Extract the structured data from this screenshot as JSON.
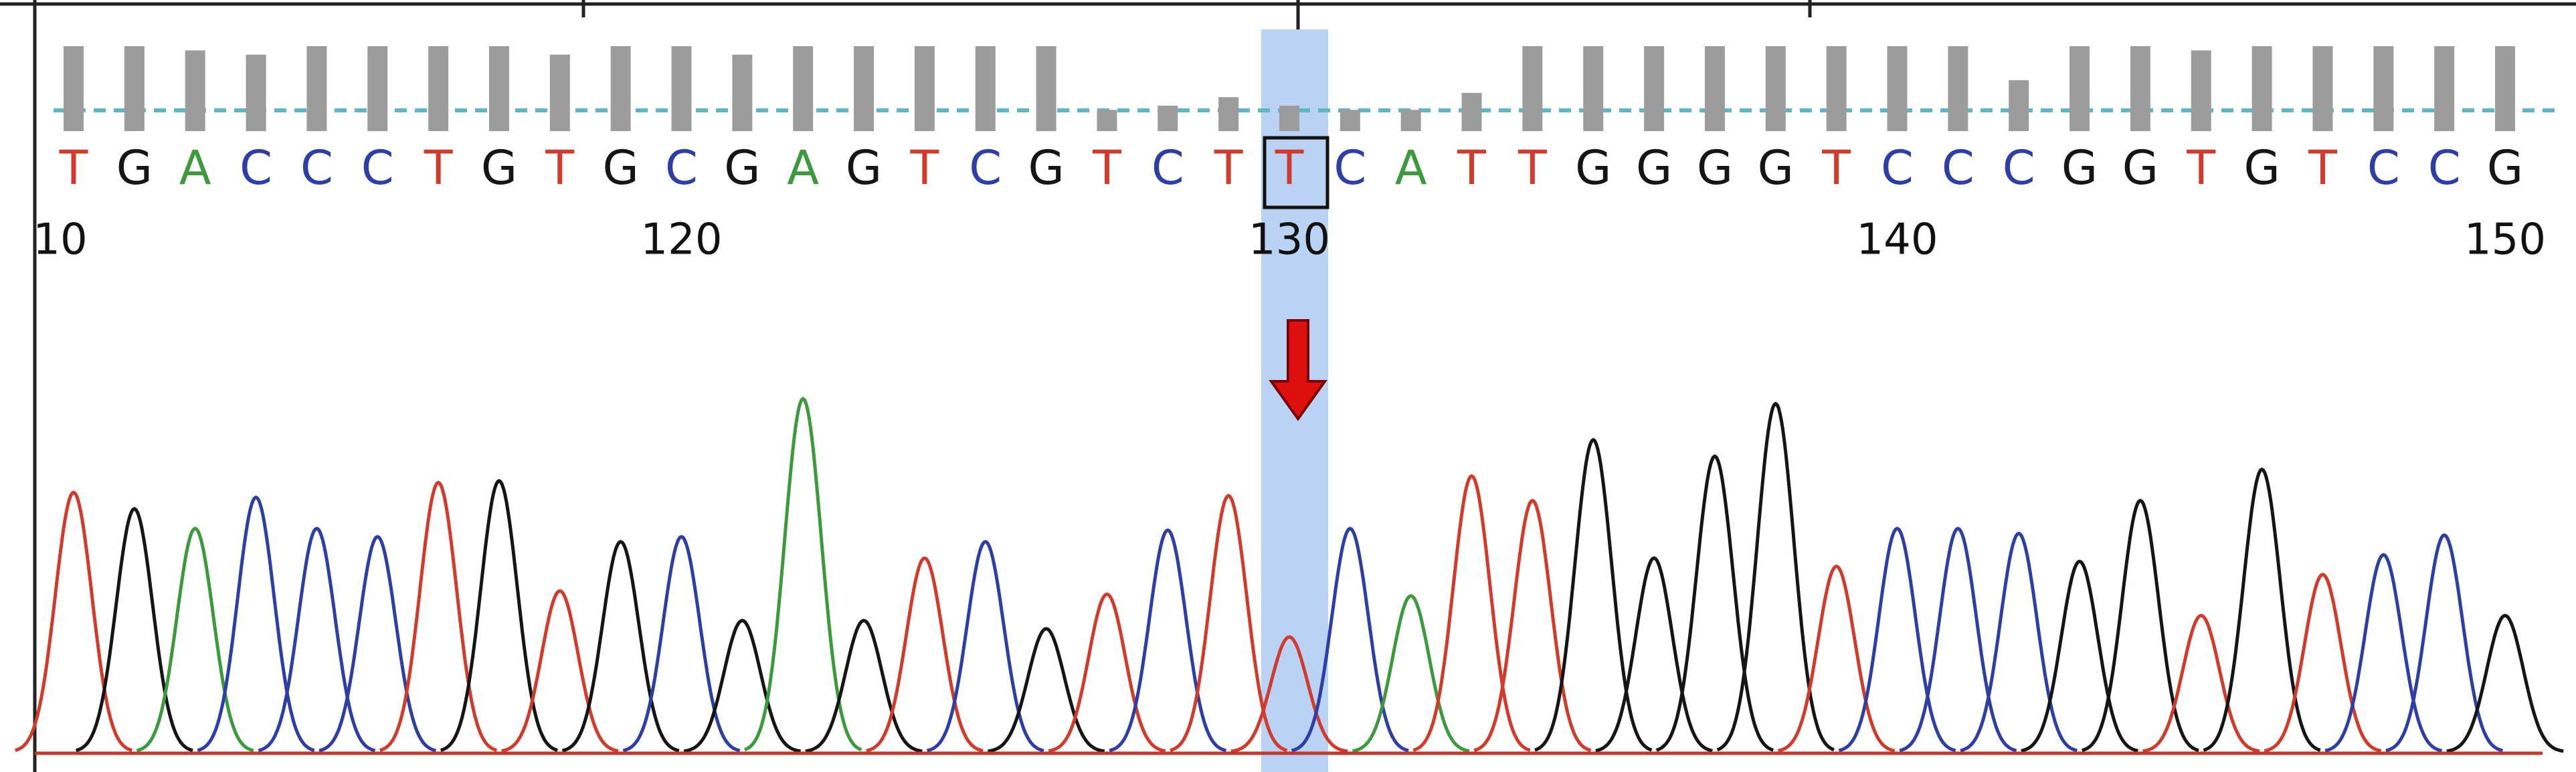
{
  "bases": [
    "T",
    "G",
    "A",
    "C",
    "C",
    "C",
    "T",
    "G",
    "T",
    "G",
    "C",
    "G",
    "A",
    "G",
    "T",
    "C",
    "G",
    "T",
    "C",
    "T",
    "T",
    "C",
    "A",
    "T",
    "T",
    "G",
    "G",
    "G",
    "G",
    "T",
    "C",
    "C",
    "C",
    "G",
    "G",
    "T",
    "G",
    "T",
    "C",
    "C",
    "G"
  ],
  "quality": [
    100,
    100,
    95,
    90,
    100,
    100,
    100,
    100,
    90,
    100,
    100,
    90,
    100,
    100,
    100,
    100,
    100,
    25,
    30,
    40,
    30,
    25,
    25,
    45,
    100,
    100,
    100,
    100,
    100,
    100,
    100,
    100,
    60,
    100,
    100,
    95,
    100,
    100,
    100,
    100,
    100
  ],
  "peaks": [
    158,
    148,
    136,
    155,
    136,
    131,
    164,
    165,
    98,
    128,
    131,
    80,
    215,
    80,
    118,
    128,
    75,
    96,
    135,
    156,
    70,
    136,
    95,
    168,
    153,
    190,
    118,
    180,
    212,
    113,
    136,
    136,
    133,
    116,
    153,
    83,
    172,
    108,
    120,
    132,
    83
  ],
  "positions": [
    "10",
    "120",
    "130",
    "140",
    "150"
  ],
  "base_colors": {
    "A": "#3c9a3c",
    "C": "#2d3fa6",
    "G": "#151515",
    "T": "#d23a2c"
  },
  "quality_color": "#9c9c9c",
  "quality_lim": [
    0,
    100
  ],
  "peak_lim": [
    0,
    270
  ]
}
